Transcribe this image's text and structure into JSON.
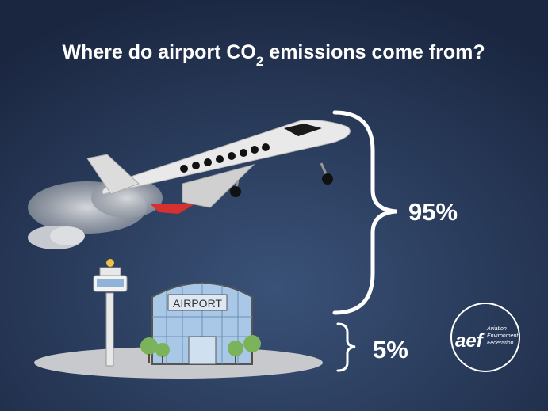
{
  "title": {
    "before": "Where do airport CO",
    "subscript": "2",
    "after": " emissions come from?"
  },
  "segments": [
    {
      "label": "95%"
    },
    {
      "label": "5%"
    }
  ],
  "sign": "AIRPORT",
  "logo": {
    "mark": "aef",
    "lines": [
      "Aviation",
      "Environment",
      "Federation"
    ]
  }
}
